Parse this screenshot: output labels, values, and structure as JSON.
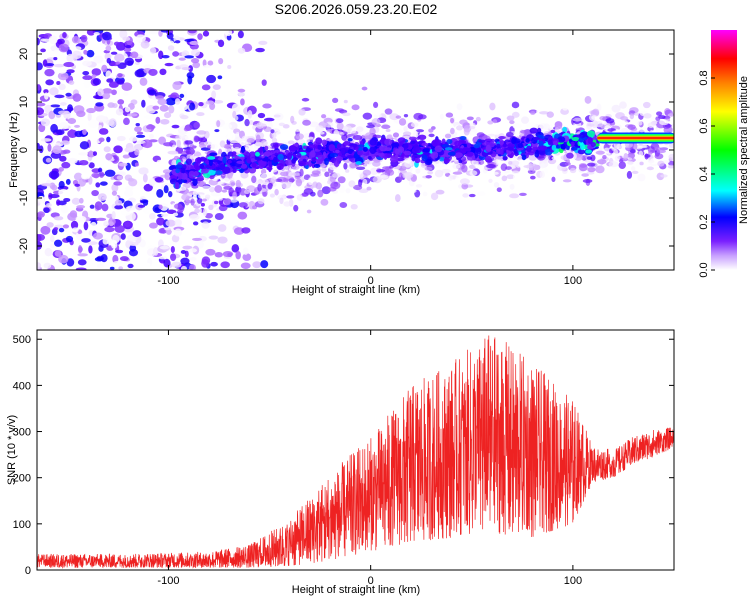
{
  "page_title": "S206.2026.059.23.20.E02",
  "colors": {
    "snr_line": "#ee2222",
    "colormap": [
      "#ffffff",
      "#b06cff",
      "#5a00ff",
      "#0000ff",
      "#00ffff",
      "#00ff00",
      "#ffff00",
      "#ff8000",
      "#ff0000",
      "#ff00ff"
    ]
  },
  "chart_data": [
    {
      "name": "spectrogram",
      "type": "heatmap",
      "title": "S206.2026.059.23.20.E02",
      "xlabel": "Height of straight line (km)",
      "ylabel": "Frequency (Hz)",
      "xlim": [
        -165,
        150
      ],
      "ylim": [
        -25,
        25
      ],
      "xticks": [
        -100,
        0,
        100
      ],
      "yticks": [
        -20,
        -10,
        0,
        10,
        20
      ],
      "xtick_labels": [
        "-100",
        "0",
        "100"
      ],
      "ytick_labels": [
        "-20",
        "-10",
        "0",
        "10",
        "20"
      ],
      "colorbar": {
        "label": "Normalized spectral amplitude",
        "range": [
          0.0,
          1.0
        ],
        "ticks": [
          0.0,
          0.2,
          0.4,
          0.6,
          0.8
        ],
        "tick_labels": [
          "0.0",
          "0.2",
          "0.4",
          "0.6",
          "0.8"
        ]
      },
      "band": {
        "description": "diffuse speckle at left, narrow band near 0 Hz right of -95 km",
        "center_hz": [
          [
            -95,
            -5
          ],
          [
            -60,
            -2
          ],
          [
            0,
            0
          ],
          [
            50,
            0
          ],
          [
            110,
            2
          ],
          [
            150,
            2.5
          ]
        ],
        "strong_tone": {
          "x_range": [
            112,
            150
          ],
          "freq_hz": 2.5,
          "amplitude": 0.85
        }
      }
    },
    {
      "name": "snr",
      "type": "line",
      "xlabel": "Height of straight line (km)",
      "ylabel": "SNR (10 * v/v)",
      "xlim": [
        -165,
        150
      ],
      "ylim": [
        0,
        520
      ],
      "xticks": [
        -100,
        0,
        100
      ],
      "yticks": [
        0,
        100,
        200,
        300,
        400,
        500
      ],
      "xtick_labels": [
        "-100",
        "0",
        "100"
      ],
      "ytick_labels": [
        "0",
        "100",
        "200",
        "300",
        "400",
        "500"
      ],
      "envelope": {
        "x": [
          -165,
          -120,
          -80,
          -60,
          -40,
          -20,
          0,
          20,
          40,
          60,
          80,
          100,
          110,
          120,
          130,
          140,
          150
        ],
        "lower": [
          5,
          5,
          5,
          5,
          8,
          20,
          40,
          60,
          70,
          80,
          70,
          100,
          190,
          200,
          230,
          245,
          265
        ],
        "upper": [
          35,
          35,
          40,
          55,
          110,
          210,
          290,
          400,
          450,
          520,
          450,
          370,
          270,
          260,
          290,
          305,
          310
        ]
      }
    }
  ]
}
